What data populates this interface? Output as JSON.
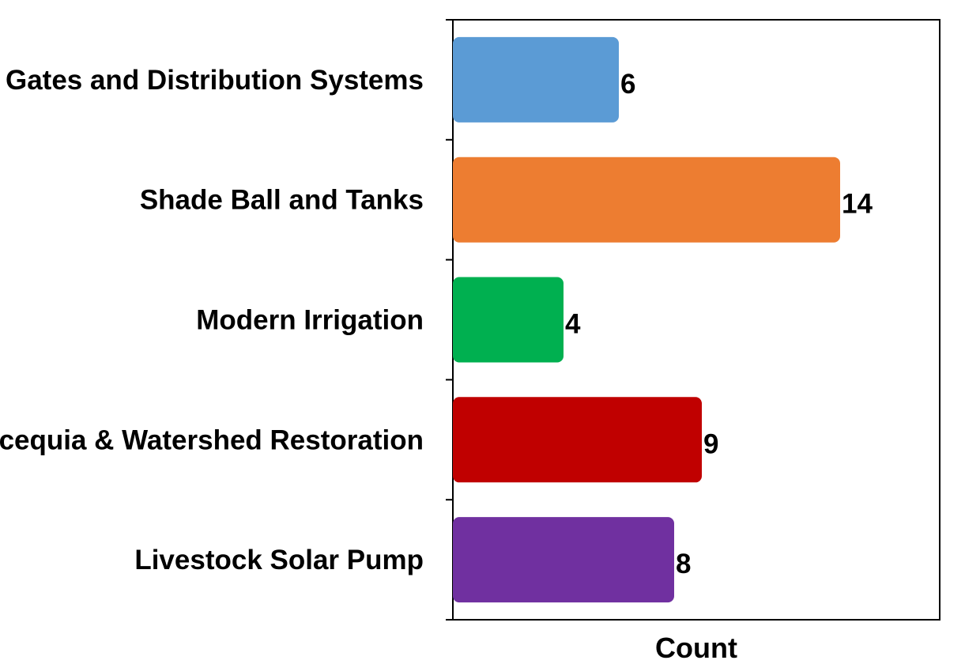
{
  "chart_data": {
    "type": "bar",
    "orientation": "horizontal",
    "categories": [
      "Gates and Distribution Systems",
      "Shade Ball and Tanks",
      "Modern Irrigation",
      "Acequia & Watershed Restoration",
      "Livestock Solar Pump"
    ],
    "values": [
      6,
      14,
      4,
      9,
      8
    ],
    "colors": [
      "#5b9bd5",
      "#ed7d31",
      "#00b050",
      "#c00000",
      "#7030a0"
    ],
    "title": "",
    "xlabel": "Count",
    "ylabel": "",
    "xlim": [
      0,
      17.6
    ],
    "grid": false,
    "legend": "none",
    "data_labels": true
  }
}
